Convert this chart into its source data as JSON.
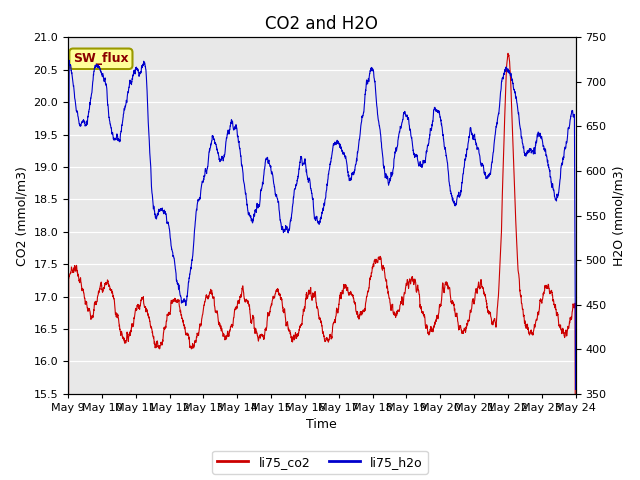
{
  "title": "CO2 and H2O",
  "xlabel": "Time",
  "ylabel_left": "CO2 (mmol/m3)",
  "ylabel_right": "H2O (mmol/m3)",
  "ylim_left": [
    15.5,
    21.0
  ],
  "ylim_right": [
    350,
    750
  ],
  "yticks_left": [
    15.5,
    16.0,
    16.5,
    17.0,
    17.5,
    18.0,
    18.5,
    19.0,
    19.5,
    20.0,
    20.5,
    21.0
  ],
  "yticks_right": [
    350,
    400,
    450,
    500,
    550,
    600,
    650,
    700,
    750
  ],
  "xtick_labels": [
    "May 9",
    "May 10",
    "May 11",
    "May 12",
    "May 13",
    "May 14",
    "May 15",
    "May 16",
    "May 17",
    "May 18",
    "May 19",
    "May 20",
    "May 21",
    "May 22",
    "May 23",
    "May 24"
  ],
  "color_co2": "#cc0000",
  "color_h2o": "#0000cc",
  "background_color": "#e8e8e8",
  "legend_label_co2": "li75_co2",
  "legend_label_h2o": "li75_h2o",
  "annotation_text": "SW_flux",
  "annotation_bg": "#ffff99",
  "annotation_border": "#999900",
  "title_fontsize": 12,
  "axis_fontsize": 9,
  "tick_fontsize": 8,
  "n_points": 3000,
  "seed": 7
}
